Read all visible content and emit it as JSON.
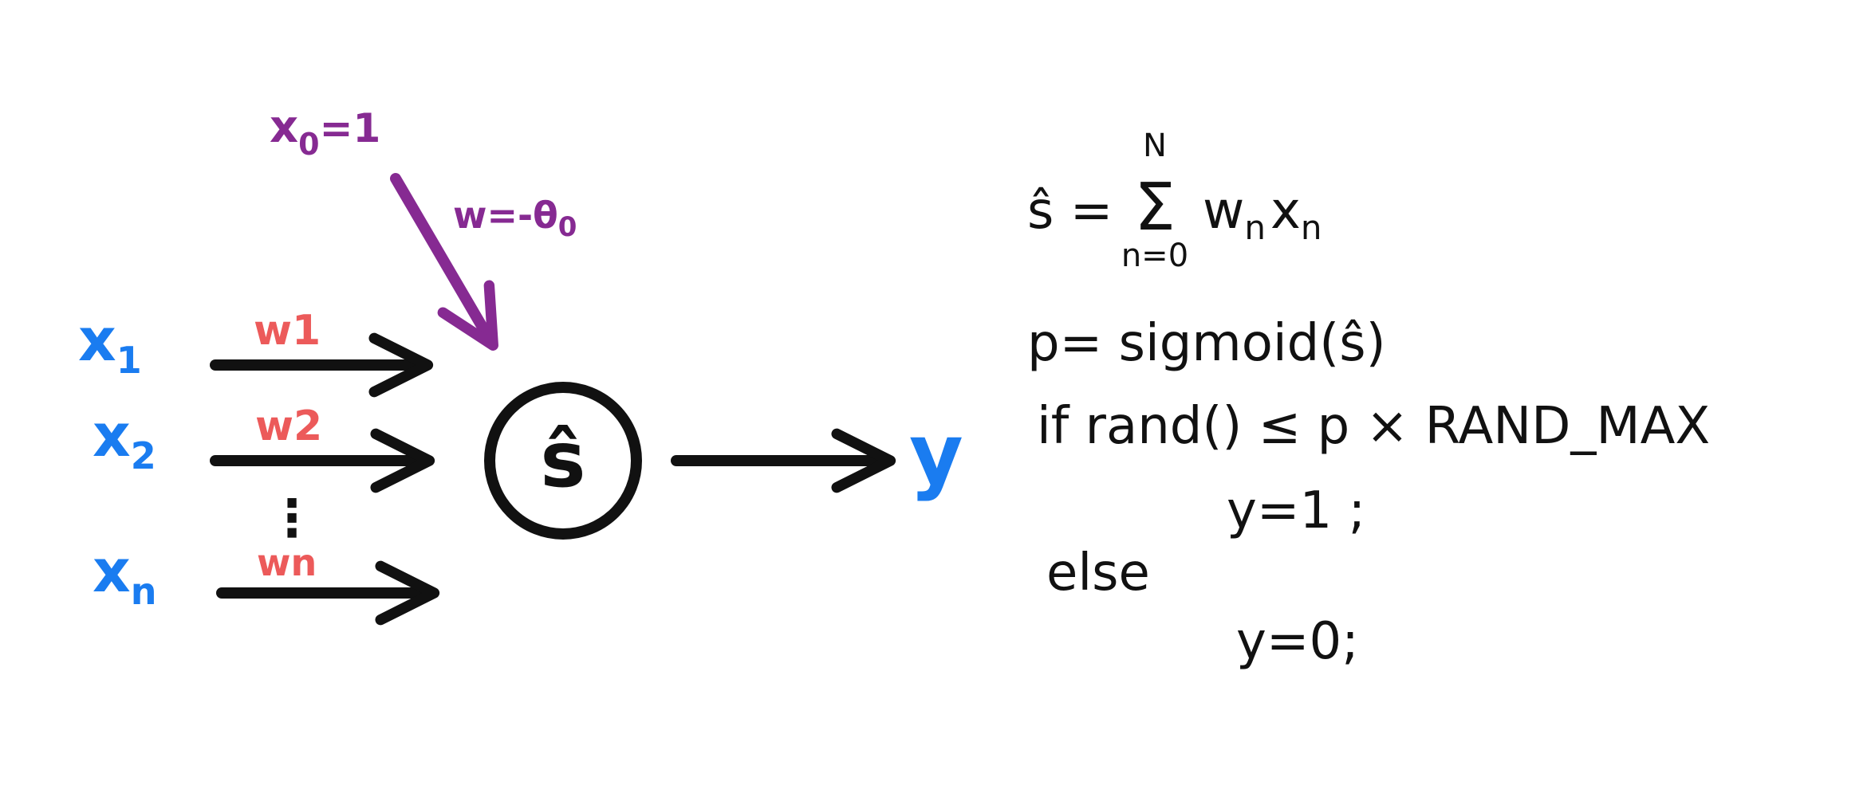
{
  "colors": {
    "input": "#1a7cf0",
    "weight": "#ec5a5a",
    "bias": "#862a92",
    "ink": "#111111",
    "output": "#1a7cf0"
  },
  "diagram": {
    "bias": {
      "input_main": "x",
      "input_sub": "0",
      "input_rest": "=1",
      "weight_main": "w=-θ",
      "weight_sub": "0"
    },
    "inputs": [
      {
        "main": "x",
        "sub": "1",
        "weight": "w1"
      },
      {
        "main": "x",
        "sub": "2",
        "weight": "w2"
      },
      {
        "main": "x",
        "sub": "n",
        "weight": "wn"
      }
    ],
    "ellipsis": "⋮",
    "node": {
      "symbol": "ŝ"
    },
    "output": {
      "label": "y"
    }
  },
  "code": {
    "line1": {
      "lhs": "ŝ =",
      "sum_upper": "N",
      "sum_symbol": "Σ",
      "sum_lower": "n=0",
      "w": "w",
      "w_sub": "n",
      "x": "x",
      "x_sub": "n"
    },
    "line2": "p= sigmoid(ŝ)",
    "line3": "if rand() ≤ p × RAND_MAX",
    "line4": "y=1 ;",
    "line5": "else",
    "line6": "y=0;"
  }
}
